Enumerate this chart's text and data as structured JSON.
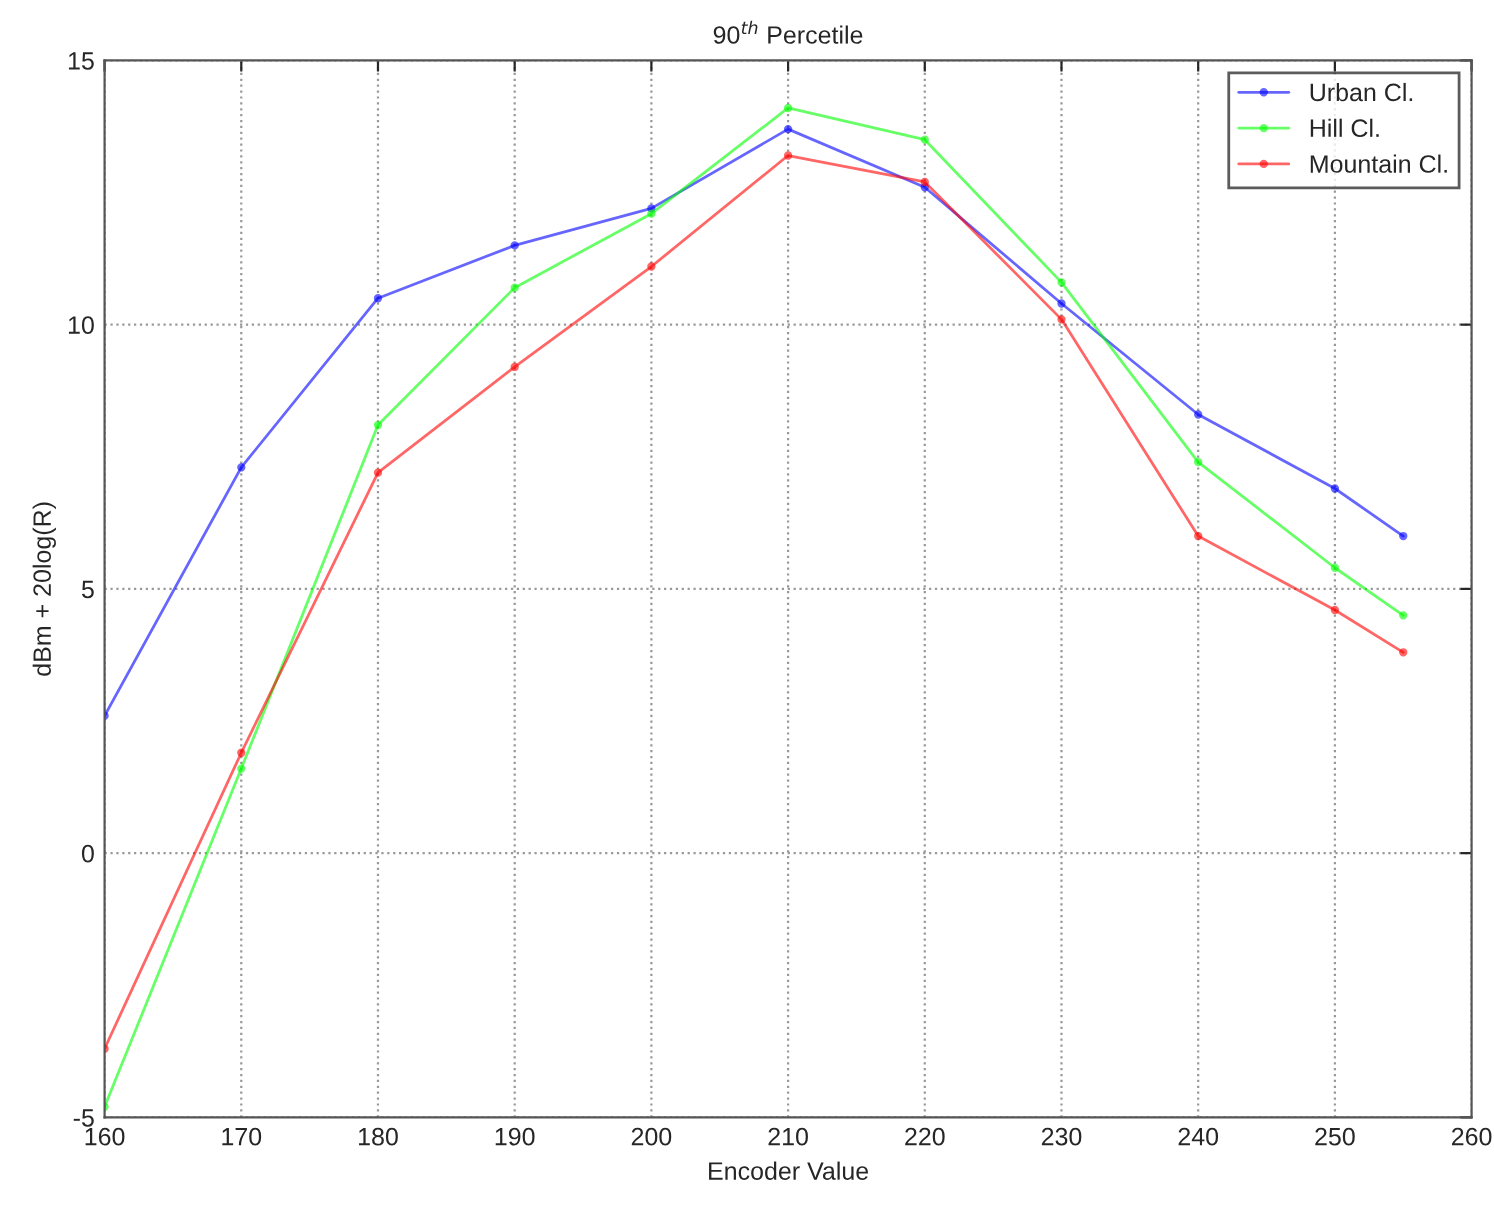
{
  "chart_data": {
    "type": "line",
    "title": "90$^{th}$ Percetile",
    "xlabel": "Encoder Value",
    "ylabel": "dBm + 20log(R)",
    "x": [
      160,
      170,
      180,
      190,
      200,
      210,
      220,
      230,
      240,
      250,
      255
    ],
    "series": [
      {
        "name": "Urban Cl.",
        "color": "#0000ff",
        "values": [
          2.6,
          7.3,
          10.5,
          11.5,
          12.2,
          13.7,
          12.6,
          10.4,
          8.3,
          6.9,
          6.0
        ]
      },
      {
        "name": "Hill Cl.",
        "color": "#00ff00",
        "values": [
          -4.8,
          1.6,
          8.1,
          10.7,
          12.1,
          14.1,
          13.5,
          10.8,
          7.4,
          5.4,
          4.5
        ]
      },
      {
        "name": "Mountain Cl.",
        "color": "#ff0000",
        "values": [
          -3.7,
          1.9,
          7.2,
          9.2,
          11.1,
          13.2,
          12.7,
          10.1,
          6.0,
          4.6,
          3.8
        ]
      }
    ],
    "xlim": [
      160,
      260
    ],
    "xticks": [
      160,
      170,
      180,
      190,
      200,
      210,
      220,
      230,
      240,
      250,
      260
    ],
    "ylim": [
      -5,
      15
    ],
    "yticks": [
      -5,
      0,
      5,
      10,
      15
    ],
    "grid": true,
    "legend": "top right",
    "marker": "circle",
    "line_style": "solid"
  }
}
